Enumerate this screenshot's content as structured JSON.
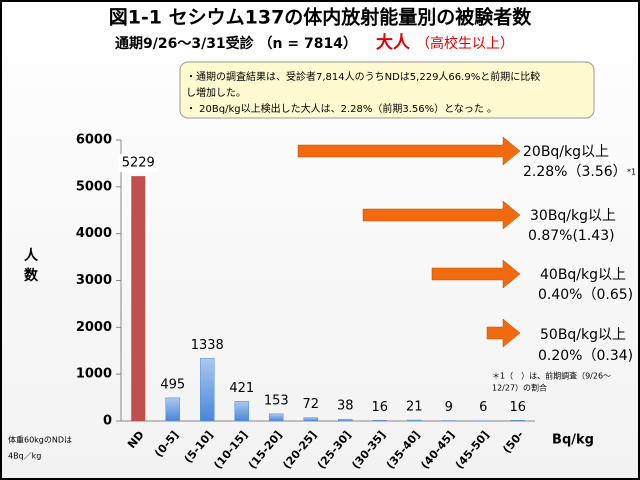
{
  "chart_data": {
    "type": "bar",
    "title": "図1-1  セシウム137の体内放射能量別の被験者数",
    "subtitle": "通期9/26〜3/31受診 （n = 7814）",
    "subtitle_highlight": "大人",
    "subtitle_note": "（高校生以上）",
    "note_box": [
      "・通期の調査結果は、受診者7,814人のうちNDは5,229人66.9%と前期に比較",
      "し増加した。",
      "・ 20Bq/kg以上検出した大人は、2.28%（前期3.56%）となった 。"
    ],
    "y_label": [
      "人",
      "数"
    ],
    "x_label": "Bq/kg",
    "bottom_note": [
      "体重60kgのNDは",
      "4Bq／kg"
    ],
    "categories": [
      "ND",
      "(0-5]",
      "(5-10]",
      "(10-15]",
      "(15-20]",
      "(20-25]",
      "(25-30]",
      "(30-35]",
      "(35-40]",
      "(40-45]",
      "(45-50]",
      "(50-"
    ],
    "values": [
      5229,
      495,
      1338,
      421,
      153,
      72,
      38,
      16,
      21,
      9,
      6,
      16
    ],
    "colors": [
      "#c0504d",
      "#5b8fd6"
    ],
    "ylim": [
      0,
      6000
    ],
    "yticks": [
      0,
      1000,
      2000,
      3000,
      4000,
      5000,
      6000
    ],
    "annotations": [
      {
        "threshold": "20Bq/kg以上",
        "rate": "2.28%（3.56）",
        "mark": "*1"
      },
      {
        "threshold": "30Bq/kg以上",
        "rate": "0.87%(1.43)"
      },
      {
        "threshold": "40Bq/kg以上",
        "rate": "0.40%（0.65)"
      },
      {
        "threshold": "50Bq/kg以上",
        "rate": "0.20%（0.34)"
      }
    ],
    "footnote": [
      "＊1（　）は、前期調査（9/26〜",
      "12/27）の割合"
    ]
  }
}
